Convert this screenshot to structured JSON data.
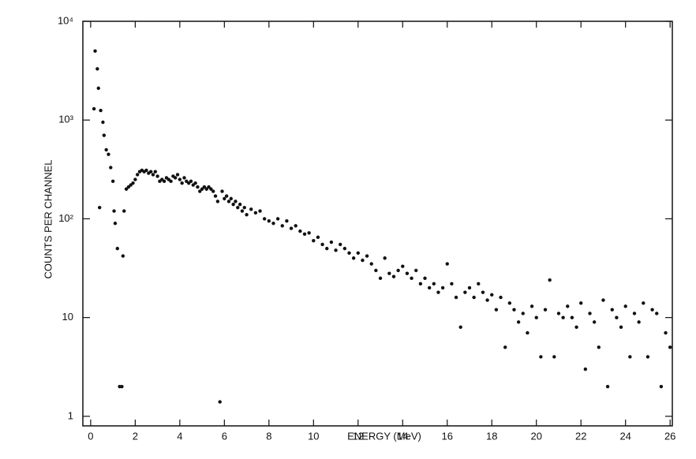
{
  "chart_data": {
    "type": "scatter",
    "xlabel": "ENERGY (MeV)",
    "ylabel": "COUNTS PER CHANNEL",
    "ylog": true,
    "grid": false,
    "color": "#111111",
    "xlim": [
      -0.35,
      26.1
    ],
    "ylim": [
      0.8,
      10000
    ],
    "xticks": [
      0,
      2,
      4,
      6,
      8,
      10,
      12,
      14,
      16,
      18,
      20,
      22,
      24,
      26
    ],
    "yticks": [
      1,
      10,
      {
        "value": 100,
        "label": "10²"
      },
      {
        "value": 1000,
        "label": "10³"
      },
      {
        "value": 10000,
        "label": "10⁴"
      }
    ],
    "x": [
      0.15,
      0.2,
      0.3,
      0.35,
      0.4,
      0.45,
      0.55,
      0.6,
      0.7,
      0.8,
      0.9,
      1.0,
      1.05,
      1.1,
      1.2,
      1.3,
      1.4,
      1.45,
      1.5,
      1.6,
      1.7,
      1.8,
      1.9,
      2.0,
      2.1,
      2.2,
      2.3,
      2.4,
      2.5,
      2.6,
      2.7,
      2.8,
      2.9,
      3.0,
      3.1,
      3.2,
      3.3,
      3.4,
      3.5,
      3.6,
      3.7,
      3.8,
      3.9,
      4.0,
      4.1,
      4.2,
      4.3,
      4.4,
      4.5,
      4.6,
      4.7,
      4.8,
      4.9,
      5.0,
      5.1,
      5.2,
      5.3,
      5.4,
      5.5,
      5.6,
      5.7,
      5.8,
      5.9,
      6.0,
      6.1,
      6.2,
      6.3,
      6.4,
      6.5,
      6.6,
      6.7,
      6.8,
      6.9,
      7.0,
      7.2,
      7.4,
      7.6,
      7.8,
      8.0,
      8.2,
      8.4,
      8.6,
      8.8,
      9.0,
      9.2,
      9.4,
      9.6,
      9.8,
      10.0,
      10.2,
      10.4,
      10.6,
      10.8,
      11.0,
      11.2,
      11.4,
      11.6,
      11.8,
      12.0,
      12.2,
      12.4,
      12.6,
      12.8,
      13.0,
      13.2,
      13.4,
      13.6,
      13.8,
      14.0,
      14.2,
      14.4,
      14.6,
      14.8,
      15.0,
      15.2,
      15.4,
      15.6,
      15.8,
      16.0,
      16.2,
      16.4,
      16.6,
      16.8,
      17.0,
      17.2,
      17.4,
      17.6,
      17.8,
      18.0,
      18.2,
      18.4,
      18.6,
      18.8,
      19.0,
      19.2,
      19.4,
      19.6,
      19.8,
      20.0,
      20.2,
      20.4,
      20.6,
      20.8,
      21.0,
      21.2,
      21.4,
      21.6,
      21.8,
      22.0,
      22.2,
      22.4,
      22.6,
      22.8,
      23.0,
      23.2,
      23.4,
      23.6,
      23.8,
      24.0,
      24.2,
      24.4,
      24.6,
      24.8,
      25.0,
      25.2,
      25.4,
      25.6,
      25.8,
      26.0
    ],
    "values": [
      1300,
      5000,
      3300,
      2100,
      130,
      1250,
      950,
      700,
      500,
      450,
      330,
      240,
      120,
      90,
      50,
      2,
      2,
      42,
      120,
      200,
      210,
      220,
      230,
      250,
      280,
      300,
      310,
      300,
      310,
      290,
      300,
      280,
      300,
      270,
      240,
      250,
      240,
      260,
      250,
      240,
      270,
      260,
      280,
      250,
      230,
      260,
      240,
      230,
      240,
      220,
      230,
      210,
      190,
      200,
      210,
      200,
      210,
      200,
      190,
      170,
      150,
      1.4,
      190,
      160,
      170,
      150,
      160,
      140,
      150,
      130,
      140,
      120,
      130,
      110,
      125,
      115,
      120,
      100,
      95,
      90,
      100,
      85,
      95,
      80,
      85,
      75,
      70,
      72,
      60,
      65,
      55,
      50,
      58,
      48,
      55,
      50,
      45,
      40,
      45,
      38,
      42,
      35,
      30,
      25,
      40,
      28,
      26,
      30,
      33,
      28,
      25,
      30,
      22,
      25,
      20,
      22,
      18,
      20,
      35,
      22,
      16,
      8,
      18,
      20,
      16,
      22,
      18,
      15,
      17,
      12,
      16,
      5,
      14,
      12,
      9,
      11,
      7,
      13,
      10,
      4,
      12,
      24,
      4,
      11,
      10,
      13,
      10,
      8,
      14,
      3,
      11,
      9,
      5,
      15,
      2,
      12,
      10,
      8,
      13,
      4,
      11,
      9,
      14,
      4,
      12,
      11,
      2,
      7,
      5
    ]
  }
}
